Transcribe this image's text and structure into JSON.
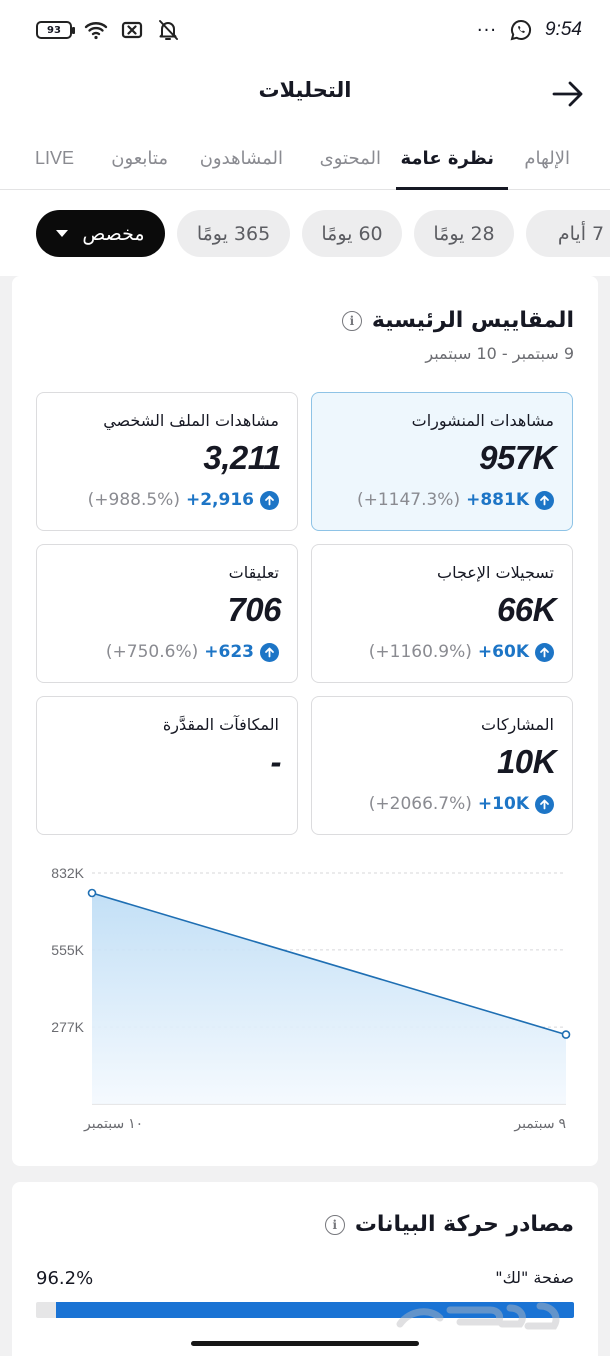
{
  "status_bar": {
    "battery": "93",
    "time": "9:54",
    "dots": "···"
  },
  "header": {
    "title": "التحليلات"
  },
  "tabs": [
    {
      "label": "الإلهام",
      "active": false
    },
    {
      "label": "نظرة عامة",
      "active": true
    },
    {
      "label": "المحتوى",
      "active": false
    },
    {
      "label": "المشاهدون",
      "active": false
    },
    {
      "label": "متابعون",
      "active": false
    },
    {
      "label": "LIVE",
      "active": false
    }
  ],
  "ranges": [
    {
      "label": "7 أيام",
      "selected": false
    },
    {
      "label": "28 يومًا",
      "selected": false
    },
    {
      "label": "60 يومًا",
      "selected": false
    },
    {
      "label": "365 يومًا",
      "selected": false
    },
    {
      "label": "مخصص",
      "selected": true
    }
  ],
  "key_metrics": {
    "title": "المقاييس الرئيسية",
    "date_range": "9 سبتمبر - 10 سبتمبر",
    "items": [
      {
        "label": "مشاهدات المنشورات",
        "value": "957K",
        "change": "+881K",
        "pct": "(+1147.3%)"
      },
      {
        "label": "مشاهدات الملف الشخصي",
        "value": "3,211",
        "change": "+2,916",
        "pct": "(+988.5%)"
      },
      {
        "label": "تسجيلات الإعجاب",
        "value": "66K",
        "change": "+60K",
        "pct": "(+1160.9%)"
      },
      {
        "label": "تعليقات",
        "value": "706",
        "change": "+623",
        "pct": "(+750.6%)"
      },
      {
        "label": "المشاركات",
        "value": "10K",
        "change": "+10K",
        "pct": "(+2066.7%)"
      },
      {
        "label": "المكافآت المقدَّرة",
        "value": "-"
      }
    ]
  },
  "chart_data": {
    "type": "area",
    "x": [
      "١٠ سبتمبر",
      "٩ سبتمبر"
    ],
    "series": [
      {
        "values": [
          760000,
          250000
        ]
      }
    ],
    "y_ticks": [
      "832K",
      "555K",
      "277K"
    ],
    "ylim": [
      0,
      832000
    ],
    "grid": true,
    "color": "#1f6fb3"
  },
  "traffic": {
    "title": "مصادر حركة البيانات",
    "source_label": "صفحة \"لك\"",
    "source_pct": "96.2%",
    "source_value": 96.2
  },
  "colors": {
    "accent": "#1d75c6",
    "bar": "#1a73d4"
  }
}
